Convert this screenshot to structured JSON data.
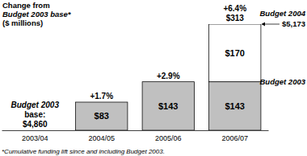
{
  "chart_data": {
    "type": "bar",
    "stacked": true,
    "data_labels": true,
    "tick_labels": "x",
    "title": [
      "Change from",
      "Budget 2003 base*",
      "($ millions)"
    ],
    "categories": [
      "2003/04",
      "2004/05",
      "2005/06",
      "2006/07"
    ],
    "series": [
      {
        "name": "Budget 2003",
        "color": "#c0c0c0",
        "values": [
          null,
          83,
          143,
          143
        ],
        "value_labels": [
          null,
          "$83",
          "$143",
          "$143"
        ]
      },
      {
        "name": "Budget 2004",
        "color": "#ffffff",
        "values": [
          null,
          null,
          null,
          170
        ],
        "value_labels": [
          null,
          null,
          null,
          "$170"
        ]
      }
    ],
    "ylim": [
      0,
      313
    ],
    "annotations": [
      {
        "text": "+1.7%",
        "category": "2004/05"
      },
      {
        "text": "+2.9%",
        "category": "2005/06"
      },
      {
        "text": "+6.4%",
        "category": "2006/07"
      },
      {
        "text": "$313",
        "category": "2006/07"
      },
      {
        "lines": [
          "Budget 2003",
          "base:",
          "$4,860"
        ],
        "category": "2003/04"
      },
      {
        "text": "$5,173",
        "series": "Budget 2004"
      }
    ],
    "footnote": "*Cumulative funding lift since and including Budget 2003."
  }
}
